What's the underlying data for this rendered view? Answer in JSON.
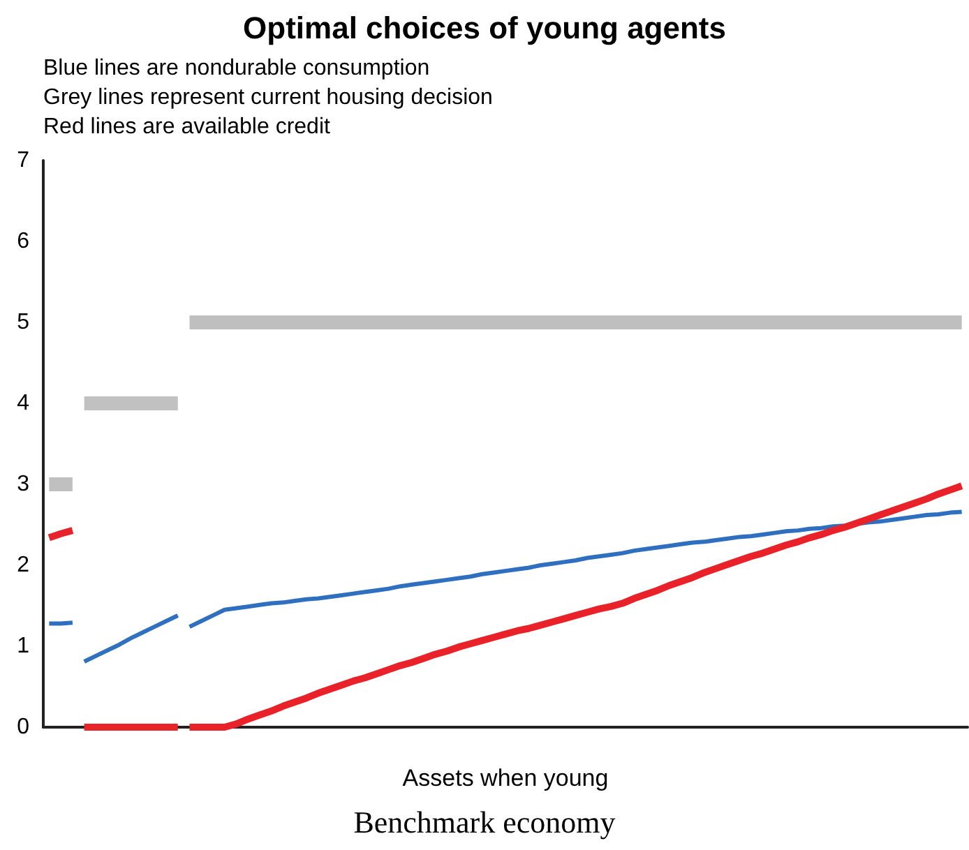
{
  "chart_data": {
    "type": "line",
    "title": "Optimal choices of young agents",
    "xlabel": "Assets when young",
    "annotations": [
      "Blue lines are nondurable consumption",
      "Grey lines represent current housing decision",
      "Red lines are available credit",
      "Benchmark economy"
    ],
    "categories": [
      null,
      null,
      null,
      null,
      null,
      null,
      null,
      null,
      null,
      null,
      null,
      null,
      null,
      null,
      null,
      null,
      null,
      null,
      null,
      null,
      null,
      null,
      null,
      null,
      null,
      null,
      null,
      null,
      null,
      null,
      null,
      null,
      null,
      null,
      null,
      null,
      null,
      null,
      null,
      null,
      null,
      null,
      null,
      null,
      null,
      null,
      null,
      null,
      null,
      null,
      null,
      null,
      null,
      null,
      null,
      null,
      null,
      null,
      null,
      null,
      null,
      null,
      null,
      null,
      null,
      null,
      null,
      null,
      null,
      null,
      null,
      null,
      null,
      null,
      null,
      null,
      null,
      null,
      null
    ],
    "ylim": [
      0,
      7
    ],
    "yticks": [
      0,
      1,
      2,
      3,
      4,
      5,
      6,
      7
    ],
    "tick_labels": "y",
    "grid": false,
    "line_style": "solid",
    "series": [
      {
        "color": "#c0c0c0",
        "values": [
          3,
          3,
          3,
          null,
          null,
          null,
          null,
          null,
          null,
          null,
          null,
          null,
          null,
          null,
          null,
          null,
          null,
          null,
          null,
          null,
          null,
          null,
          null,
          null,
          null,
          null,
          null,
          null,
          null,
          null,
          null,
          null,
          null,
          null,
          null,
          null,
          null,
          null,
          null,
          null,
          null,
          null,
          null,
          null,
          null,
          null,
          null,
          null,
          null,
          null,
          null,
          null,
          null,
          null,
          null,
          null,
          null,
          null,
          null,
          null,
          null,
          null,
          null,
          null,
          null,
          null,
          null,
          null,
          null,
          null,
          null,
          null,
          null,
          null,
          null,
          null,
          null,
          null,
          null
        ]
      },
      {
        "color": "#c1c1c1",
        "values": [
          null,
          null,
          null,
          4,
          4,
          4,
          4,
          4,
          4,
          4,
          4,
          4,
          null,
          null,
          null,
          null,
          null,
          null,
          null,
          null,
          null,
          null,
          null,
          null,
          null,
          null,
          null,
          null,
          null,
          null,
          null,
          null,
          null,
          null,
          null,
          null,
          null,
          null,
          null,
          null,
          null,
          null,
          null,
          null,
          null,
          null,
          null,
          null,
          null,
          null,
          null,
          null,
          null,
          null,
          null,
          null,
          null,
          null,
          null,
          null,
          null,
          null,
          null,
          null,
          null,
          null,
          null,
          null,
          null,
          null,
          null,
          null,
          null,
          null,
          null,
          null,
          null,
          null,
          null
        ]
      },
      {
        "color": "#bfbfbf",
        "values": [
          null,
          null,
          null,
          null,
          null,
          null,
          null,
          null,
          null,
          null,
          null,
          null,
          5,
          5,
          5,
          5,
          5,
          5,
          5,
          5,
          5,
          5,
          5,
          5,
          5,
          5,
          5,
          5,
          5,
          5,
          5,
          5,
          5,
          5,
          5,
          5,
          5,
          5,
          5,
          5,
          5,
          5,
          5,
          5,
          5,
          5,
          5,
          5,
          5,
          5,
          5,
          5,
          5,
          5,
          5,
          5,
          5,
          5,
          5,
          5,
          5,
          5,
          5,
          5,
          5,
          5,
          5,
          5,
          5,
          5,
          5,
          5,
          5,
          5,
          5,
          5,
          5,
          5,
          5
        ]
      },
      {
        "color": "#2f6fbf",
        "values": [
          1.28,
          1.28,
          1.29,
          null,
          null,
          null,
          null,
          null,
          null,
          null,
          null,
          null,
          null,
          null,
          null,
          null,
          null,
          null,
          null,
          null,
          null,
          null,
          null,
          null,
          null,
          null,
          null,
          null,
          null,
          null,
          null,
          null,
          null,
          null,
          null,
          null,
          null,
          null,
          null,
          null,
          null,
          null,
          null,
          null,
          null,
          null,
          null,
          null,
          null,
          null,
          null,
          null,
          null,
          null,
          null,
          null,
          null,
          null,
          null,
          null,
          null,
          null,
          null,
          null,
          null,
          null,
          null,
          null,
          null,
          null,
          null,
          null,
          null,
          null,
          null,
          null,
          null,
          null,
          null
        ]
      },
      {
        "color": "#2f70bf",
        "values": [
          null,
          null,
          null,
          0.81,
          0.88,
          0.95,
          1.02,
          1.1,
          1.17,
          1.24,
          1.31,
          1.38,
          null,
          null,
          null,
          null,
          null,
          null,
          null,
          null,
          null,
          null,
          null,
          null,
          null,
          null,
          null,
          null,
          null,
          null,
          null,
          null,
          null,
          null,
          null,
          null,
          null,
          null,
          null,
          null,
          null,
          null,
          null,
          null,
          null,
          null,
          null,
          null,
          null,
          null,
          null,
          null,
          null,
          null,
          null,
          null,
          null,
          null,
          null,
          null,
          null,
          null,
          null,
          null,
          null,
          null,
          null,
          null,
          null,
          null,
          null,
          null,
          null,
          null,
          null,
          null,
          null,
          null,
          null
        ]
      },
      {
        "color": "#2e6fbf",
        "values": [
          null,
          null,
          null,
          null,
          null,
          null,
          null,
          null,
          null,
          null,
          null,
          null,
          1.24,
          1.31,
          1.38,
          1.45,
          1.47,
          1.49,
          1.51,
          1.53,
          1.54,
          1.56,
          1.58,
          1.59,
          1.61,
          1.63,
          1.65,
          1.67,
          1.69,
          1.71,
          1.74,
          1.76,
          1.78,
          1.8,
          1.82,
          1.84,
          1.86,
          1.89,
          1.91,
          1.93,
          1.95,
          1.97,
          2.0,
          2.02,
          2.04,
          2.06,
          2.09,
          2.11,
          2.13,
          2.15,
          2.18,
          2.2,
          2.22,
          2.24,
          2.26,
          2.28,
          2.29,
          2.31,
          2.33,
          2.35,
          2.36,
          2.38,
          2.4,
          2.42,
          2.43,
          2.45,
          2.46,
          2.48,
          2.49,
          2.51,
          2.53,
          2.54,
          2.56,
          2.58,
          2.6,
          2.62,
          2.63,
          2.65,
          2.66
        ]
      },
      {
        "color": "#e8222a",
        "values": [
          2.34,
          2.39,
          2.43,
          null,
          null,
          null,
          null,
          null,
          null,
          null,
          null,
          null,
          null,
          null,
          null,
          null,
          null,
          null,
          null,
          null,
          null,
          null,
          null,
          null,
          null,
          null,
          null,
          null,
          null,
          null,
          null,
          null,
          null,
          null,
          null,
          null,
          null,
          null,
          null,
          null,
          null,
          null,
          null,
          null,
          null,
          null,
          null,
          null,
          null,
          null,
          null,
          null,
          null,
          null,
          null,
          null,
          null,
          null,
          null,
          null,
          null,
          null,
          null,
          null,
          null,
          null,
          null,
          null,
          null,
          null,
          null,
          null,
          null,
          null,
          null,
          null,
          null,
          null,
          null
        ]
      },
      {
        "color": "#e8232a",
        "values": [
          null,
          null,
          null,
          0,
          0,
          0,
          0,
          0,
          0,
          0,
          0,
          0,
          null,
          null,
          null,
          null,
          null,
          null,
          null,
          null,
          null,
          null,
          null,
          null,
          null,
          null,
          null,
          null,
          null,
          null,
          null,
          null,
          null,
          null,
          null,
          null,
          null,
          null,
          null,
          null,
          null,
          null,
          null,
          null,
          null,
          null,
          null,
          null,
          null,
          null,
          null,
          null,
          null,
          null,
          null,
          null,
          null,
          null,
          null,
          null,
          null,
          null,
          null,
          null,
          null,
          null,
          null,
          null,
          null,
          null,
          null,
          null,
          null,
          null,
          null,
          null,
          null,
          null,
          null
        ]
      },
      {
        "color": "#e9222a",
        "values": [
          null,
          null,
          null,
          null,
          null,
          null,
          null,
          null,
          null,
          null,
          null,
          null,
          0,
          0,
          0,
          0,
          0.04,
          0.1,
          0.15,
          0.2,
          0.26,
          0.31,
          0.36,
          0.42,
          0.47,
          0.52,
          0.57,
          0.61,
          0.66,
          0.71,
          0.76,
          0.8,
          0.85,
          0.9,
          0.94,
          0.99,
          1.03,
          1.07,
          1.11,
          1.15,
          1.19,
          1.22,
          1.26,
          1.3,
          1.34,
          1.38,
          1.42,
          1.46,
          1.49,
          1.53,
          1.59,
          1.64,
          1.69,
          1.75,
          1.8,
          1.85,
          1.91,
          1.96,
          2.01,
          2.06,
          2.11,
          2.15,
          2.2,
          2.25,
          2.29,
          2.34,
          2.38,
          2.43,
          2.47,
          2.52,
          2.57,
          2.62,
          2.67,
          2.72,
          2.77,
          2.82,
          2.88,
          2.93,
          2.98
        ]
      }
    ]
  }
}
